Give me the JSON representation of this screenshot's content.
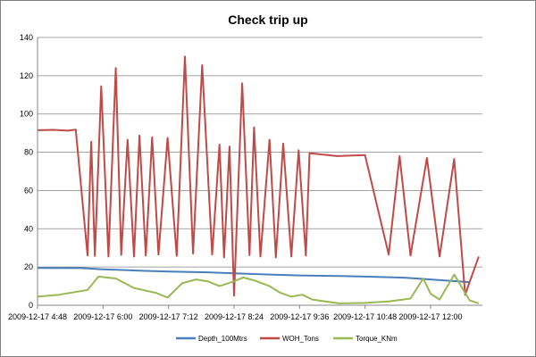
{
  "chart_data": {
    "type": "line",
    "title": "Check trip up",
    "xlabel": "",
    "ylabel": "",
    "ylim": [
      0,
      140
    ],
    "yticks": [
      0,
      20,
      40,
      60,
      80,
      100,
      120,
      140
    ],
    "xlim": [
      "2009-12-17 04:48",
      "2009-12-17 12:57"
    ],
    "xticks": [
      "2009-12-17  4:48",
      "2009-12-17  6:00",
      "2009-12-17  7:12",
      "2009-12-17  8:24",
      "2009-12-17  9:36",
      "2009-12-17  10:48",
      "2009-12-17  12:00"
    ],
    "grid": "horizontal",
    "legend_position": "bottom",
    "series": [
      {
        "name": "Depth_100Mtrs",
        "color": "#4a7ebb",
        "x": [
          "2009-12-17 04:48",
          "2009-12-17 05:36",
          "2009-12-17 06:00",
          "2009-12-17 06:43",
          "2009-12-17 07:12",
          "2009-12-17 07:55",
          "2009-12-17 08:24",
          "2009-12-17 09:07",
          "2009-12-17 09:36",
          "2009-12-17 10:19",
          "2009-12-17 10:48",
          "2009-12-17 11:31",
          "2009-12-17 12:00",
          "2009-12-17 12:43"
        ],
        "values": [
          19.5,
          19.4,
          18.8,
          18.0,
          17.6,
          17.2,
          16.7,
          16.0,
          15.6,
          15.3,
          15.0,
          14.4,
          13.5,
          12.1
        ]
      },
      {
        "name": "WOH_Tons",
        "color": "#be4b48",
        "x": [
          "2009-12-17 04:48",
          "2009-12-17 05:06",
          "2009-12-17 05:21",
          "2009-12-17 05:30",
          "2009-12-17 05:43",
          "2009-12-17 05:47",
          "2009-12-17 05:51",
          "2009-12-17 05:58",
          "2009-12-17 06:06",
          "2009-12-17 06:14",
          "2009-12-17 06:20",
          "2009-12-17 06:27",
          "2009-12-17 06:34",
          "2009-12-17 06:40",
          "2009-12-17 06:47",
          "2009-12-17 06:54",
          "2009-12-17 07:01",
          "2009-12-17 07:11",
          "2009-12-17 07:21",
          "2009-12-17 07:30",
          "2009-12-17 07:39",
          "2009-12-17 07:49",
          "2009-12-17 08:00",
          "2009-12-17 08:08",
          "2009-12-17 08:13",
          "2009-12-17 08:19",
          "2009-12-17 08:24",
          "2009-12-17 08:33",
          "2009-12-17 08:41",
          "2009-12-17 08:46",
          "2009-12-17 08:53",
          "2009-12-17 09:03",
          "2009-12-17 09:10",
          "2009-12-17 09:18",
          "2009-12-17 09:27",
          "2009-12-17 09:35",
          "2009-12-17 09:43",
          "2009-12-17 09:47",
          "2009-12-17 10:17",
          "2009-12-17 10:48",
          "2009-12-17 11:14",
          "2009-12-17 11:26",
          "2009-12-17 11:38",
          "2009-12-17 11:56",
          "2009-12-17 12:10",
          "2009-12-17 12:26",
          "2009-12-17 12:38",
          "2009-12-17 12:53"
        ],
        "values": [
          91.5,
          91.7,
          91.3,
          91.8,
          26.0,
          85.5,
          25.8,
          114.5,
          25.5,
          124.0,
          26.3,
          86.5,
          25.5,
          88.7,
          26.0,
          87.8,
          26.5,
          87.5,
          25.8,
          130.0,
          27.0,
          125.5,
          26.5,
          84.0,
          25.0,
          83.0,
          5.0,
          116.0,
          26.2,
          93.0,
          25.5,
          86.5,
          25.0,
          84.5,
          25.5,
          81.0,
          26.0,
          79.5,
          78.0,
          78.5,
          26.5,
          78.0,
          26.0,
          77.0,
          25.5,
          76.5,
          5.5,
          25.5
        ]
      },
      {
        "name": "Torque_KNm",
        "color": "#98b954",
        "x": [
          "2009-12-17 04:48",
          "2009-12-17 05:12",
          "2009-12-17 05:43",
          "2009-12-17 05:55",
          "2009-12-17 06:14",
          "2009-12-17 06:34",
          "2009-12-17 06:58",
          "2009-12-17 07:11",
          "2009-12-17 07:27",
          "2009-12-17 07:42",
          "2009-12-17 07:55",
          "2009-12-17 08:08",
          "2009-12-17 08:24",
          "2009-12-17 08:34",
          "2009-12-17 08:46",
          "2009-12-17 09:03",
          "2009-12-17 09:15",
          "2009-12-17 09:27",
          "2009-12-17 09:39",
          "2009-12-17 09:50",
          "2009-12-17 10:19",
          "2009-12-17 10:48",
          "2009-12-17 11:14",
          "2009-12-17 11:38",
          "2009-12-17 11:52",
          "2009-12-17 12:00",
          "2009-12-17 12:10",
          "2009-12-17 12:26",
          "2009-12-17 12:43",
          "2009-12-17 12:53"
        ],
        "values": [
          4.5,
          5.5,
          8.0,
          15.0,
          14.0,
          9.0,
          6.5,
          4.0,
          11.5,
          13.5,
          12.5,
          10.0,
          12.5,
          14.5,
          13.0,
          10.0,
          6.5,
          4.5,
          5.5,
          3.0,
          1.0,
          1.2,
          2.0,
          3.5,
          14.0,
          6.0,
          3.0,
          16.0,
          2.5,
          1.0
        ]
      }
    ]
  }
}
